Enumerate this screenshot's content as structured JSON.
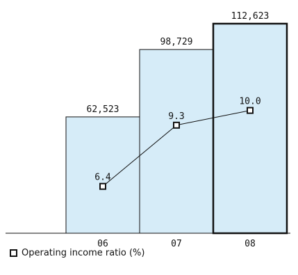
{
  "chart_data": {
    "type": "bar",
    "categories": [
      "06",
      "07",
      "08"
    ],
    "series": [
      {
        "type": "bar",
        "values": [
          62523,
          98729,
          112623
        ],
        "labels": [
          "62,523",
          "98,729",
          "112,623"
        ]
      },
      {
        "type": "line",
        "name": "Operating income ratio (%)",
        "values": [
          6.4,
          9.3,
          10.0
        ],
        "labels": [
          "6.4",
          "9.3",
          "10.0"
        ]
      }
    ],
    "highlight_category": "08",
    "colors": {
      "bar_fill": "#d6ecf8",
      "bar_stroke": "#111111",
      "line": "#111111",
      "marker_fill": "#ffffff"
    },
    "title": "",
    "xlabel": "",
    "ylabel": "",
    "legend": {
      "position": "bottom-left",
      "label": "Operating income ratio (%)",
      "marker": "open-square"
    }
  }
}
